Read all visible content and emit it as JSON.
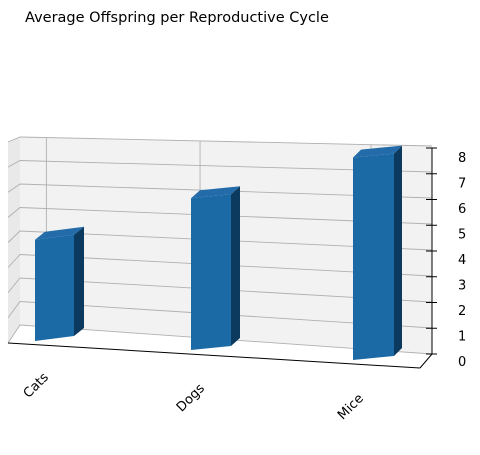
{
  "chart_data": {
    "type": "bar",
    "title": "Average Offspring per Reproductive Cycle",
    "categories": [
      "Cats",
      "Dogs",
      "Mice"
    ],
    "values": [
      4,
      6,
      8
    ],
    "zlim": [
      0,
      8
    ],
    "zticks": [
      0,
      1,
      2,
      3,
      4,
      5,
      6,
      7,
      8
    ],
    "xlabel": "",
    "ylabel": "",
    "grid": true,
    "projection": "3d",
    "colors": {
      "bar_front": "#1b6aa5",
      "bar_top": "#236ca9",
      "bar_side": "#0c3a5e",
      "pane": "#f2f2f2",
      "grid": "#b0b0b0"
    }
  }
}
